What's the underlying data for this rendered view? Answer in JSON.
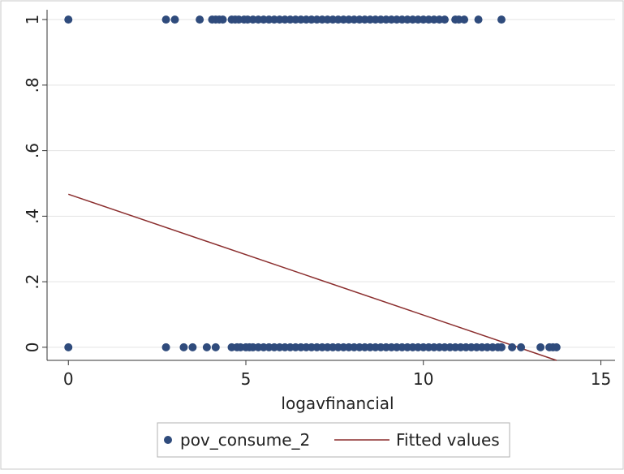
{
  "chart_data": {
    "type": "scatter",
    "title": "",
    "xlabel": "logavfinancial",
    "ylabel": "",
    "xlim": [
      -0.6,
      15.4
    ],
    "ylim": [
      -0.04,
      1.03
    ],
    "xticks": [
      0,
      5,
      10,
      15
    ],
    "xtick_labels": [
      "0",
      "5",
      "10",
      "15"
    ],
    "yticks": [
      0,
      0.2,
      0.4,
      0.6,
      0.8,
      1
    ],
    "ytick_labels": [
      "0",
      ".2",
      ".4",
      ".6",
      ".8",
      "1"
    ],
    "grid": "horizontal",
    "legend_position": "bottom",
    "series": [
      {
        "name": "pov_consume_2",
        "kind": "scatter",
        "color": "#2f4b7c",
        "points": [
          [
            0,
            1
          ],
          [
            2.75,
            1
          ],
          [
            3.0,
            1
          ],
          [
            3.7,
            1
          ],
          [
            4.05,
            1
          ],
          [
            4.15,
            1
          ],
          [
            4.25,
            1
          ],
          [
            4.35,
            1
          ],
          [
            4.6,
            1
          ],
          [
            4.7,
            1
          ],
          [
            4.8,
            1
          ],
          [
            4.95,
            1
          ],
          [
            5.05,
            1
          ],
          [
            5.2,
            1
          ],
          [
            5.35,
            1
          ],
          [
            5.5,
            1
          ],
          [
            5.65,
            1
          ],
          [
            5.8,
            1
          ],
          [
            5.95,
            1
          ],
          [
            6.1,
            1
          ],
          [
            6.25,
            1
          ],
          [
            6.4,
            1
          ],
          [
            6.55,
            1
          ],
          [
            6.7,
            1
          ],
          [
            6.85,
            1
          ],
          [
            7.0,
            1
          ],
          [
            7.15,
            1
          ],
          [
            7.3,
            1
          ],
          [
            7.45,
            1
          ],
          [
            7.6,
            1
          ],
          [
            7.75,
            1
          ],
          [
            7.9,
            1
          ],
          [
            8.05,
            1
          ],
          [
            8.2,
            1
          ],
          [
            8.35,
            1
          ],
          [
            8.5,
            1
          ],
          [
            8.65,
            1
          ],
          [
            8.8,
            1
          ],
          [
            8.95,
            1
          ],
          [
            9.1,
            1
          ],
          [
            9.25,
            1
          ],
          [
            9.4,
            1
          ],
          [
            9.55,
            1
          ],
          [
            9.7,
            1
          ],
          [
            9.85,
            1
          ],
          [
            10.0,
            1
          ],
          [
            10.15,
            1
          ],
          [
            10.3,
            1
          ],
          [
            10.45,
            1
          ],
          [
            10.6,
            1
          ],
          [
            10.9,
            1
          ],
          [
            11.0,
            1
          ],
          [
            11.15,
            1
          ],
          [
            11.55,
            1
          ],
          [
            12.2,
            1
          ],
          [
            0,
            0
          ],
          [
            2.75,
            0
          ],
          [
            3.25,
            0
          ],
          [
            3.5,
            0
          ],
          [
            3.9,
            0
          ],
          [
            4.15,
            0
          ],
          [
            4.6,
            0
          ],
          [
            4.75,
            0
          ],
          [
            4.85,
            0
          ],
          [
            5.0,
            0
          ],
          [
            5.1,
            0
          ],
          [
            5.2,
            0
          ],
          [
            5.35,
            0
          ],
          [
            5.5,
            0
          ],
          [
            5.65,
            0
          ],
          [
            5.8,
            0
          ],
          [
            5.95,
            0
          ],
          [
            6.1,
            0
          ],
          [
            6.25,
            0
          ],
          [
            6.4,
            0
          ],
          [
            6.55,
            0
          ],
          [
            6.7,
            0
          ],
          [
            6.85,
            0
          ],
          [
            7.0,
            0
          ],
          [
            7.15,
            0
          ],
          [
            7.3,
            0
          ],
          [
            7.45,
            0
          ],
          [
            7.6,
            0
          ],
          [
            7.75,
            0
          ],
          [
            7.9,
            0
          ],
          [
            8.05,
            0
          ],
          [
            8.2,
            0
          ],
          [
            8.35,
            0
          ],
          [
            8.5,
            0
          ],
          [
            8.65,
            0
          ],
          [
            8.8,
            0
          ],
          [
            8.95,
            0
          ],
          [
            9.1,
            0
          ],
          [
            9.25,
            0
          ],
          [
            9.4,
            0
          ],
          [
            9.55,
            0
          ],
          [
            9.7,
            0
          ],
          [
            9.85,
            0
          ],
          [
            10.0,
            0
          ],
          [
            10.15,
            0
          ],
          [
            10.3,
            0
          ],
          [
            10.45,
            0
          ],
          [
            10.6,
            0
          ],
          [
            10.75,
            0
          ],
          [
            10.9,
            0
          ],
          [
            11.05,
            0
          ],
          [
            11.2,
            0
          ],
          [
            11.35,
            0
          ],
          [
            11.5,
            0
          ],
          [
            11.65,
            0
          ],
          [
            11.8,
            0
          ],
          [
            11.95,
            0
          ],
          [
            12.1,
            0
          ],
          [
            12.2,
            0
          ],
          [
            12.5,
            0
          ],
          [
            12.75,
            0
          ],
          [
            13.3,
            0
          ],
          [
            13.55,
            0
          ],
          [
            13.65,
            0
          ],
          [
            13.75,
            0
          ]
        ]
      },
      {
        "name": "Fitted values",
        "kind": "line",
        "color": "#8b2e2e",
        "x": [
          0,
          13.75
        ],
        "y": [
          0.467,
          -0.04
        ]
      }
    ]
  }
}
